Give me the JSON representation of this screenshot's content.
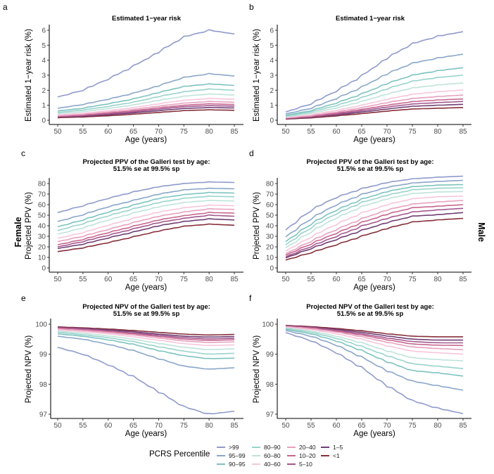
{
  "figure": {
    "row_labels": {
      "female": "Female",
      "male": "Male"
    },
    "legend": {
      "title": "PCRS Percentile",
      "entries": [
        {
          "label": ">99",
          "color": "#8f9acb"
        },
        {
          "label": "95–99",
          "color": "#8aa6c9"
        },
        {
          "label": "90–95",
          "color": "#7cc3c0"
        },
        {
          "label": "80–90",
          "color": "#99d3cc"
        },
        {
          "label": "60–80",
          "color": "#bfe3da"
        },
        {
          "label": "40–60",
          "color": "#f7c6dc"
        },
        {
          "label": "20–40",
          "color": "#e8a0bf"
        },
        {
          "label": "10–20",
          "color": "#c7668f"
        },
        {
          "label": "5–10",
          "color": "#a2578f"
        },
        {
          "label": "1–5",
          "color": "#6f3d73"
        },
        {
          "label": "<1",
          "color": "#862e3a"
        }
      ]
    }
  },
  "chart_data": [
    {
      "panel": "a",
      "type": "line",
      "title": "Estimated 1−year risk",
      "xlabel": "Age (years)",
      "ylabel": "Estimated 1−year risk (%)",
      "xlim": [
        50,
        85
      ],
      "ylim": [
        0,
        6
      ],
      "xticks": [
        "50",
        "55",
        "60",
        "65",
        "70",
        "75",
        "80",
        "85"
      ],
      "yticks": [
        "0",
        "1",
        "2",
        "3",
        "4",
        "5",
        "6"
      ],
      "x": [
        50,
        55,
        60,
        65,
        70,
        75,
        80,
        85
      ],
      "series": [
        {
          "name": ">99",
          "values": [
            1.55,
            2.0,
            2.75,
            3.6,
            4.55,
            5.55,
            6.0,
            5.75
          ]
        },
        {
          "name": "95–99",
          "values": [
            0.8,
            1.05,
            1.4,
            1.8,
            2.3,
            2.85,
            3.1,
            2.95
          ]
        },
        {
          "name": "90–95",
          "values": [
            0.62,
            0.8,
            1.1,
            1.42,
            1.85,
            2.25,
            2.42,
            2.32
          ]
        },
        {
          "name": "80–90",
          "values": [
            0.52,
            0.68,
            0.92,
            1.2,
            1.58,
            1.9,
            2.08,
            2.0
          ]
        },
        {
          "name": "60–80",
          "values": [
            0.44,
            0.57,
            0.78,
            1.02,
            1.33,
            1.6,
            1.75,
            1.68
          ]
        },
        {
          "name": "40–60",
          "values": [
            0.36,
            0.46,
            0.64,
            0.84,
            1.1,
            1.33,
            1.45,
            1.4
          ]
        },
        {
          "name": "20–40",
          "values": [
            0.31,
            0.4,
            0.55,
            0.72,
            0.94,
            1.14,
            1.25,
            1.2
          ]
        },
        {
          "name": "10–20",
          "values": [
            0.27,
            0.35,
            0.48,
            0.63,
            0.83,
            1.0,
            1.1,
            1.05
          ]
        },
        {
          "name": "5–10",
          "values": [
            0.24,
            0.31,
            0.43,
            0.56,
            0.74,
            0.9,
            0.98,
            0.94
          ]
        },
        {
          "name": "1–5",
          "values": [
            0.21,
            0.27,
            0.37,
            0.49,
            0.64,
            0.78,
            0.85,
            0.82
          ]
        },
        {
          "name": "<1",
          "values": [
            0.17,
            0.22,
            0.3,
            0.4,
            0.52,
            0.64,
            0.7,
            0.66
          ]
        }
      ]
    },
    {
      "panel": "b",
      "type": "line",
      "title": "Estimated 1−year risk",
      "xlabel": "Age (years)",
      "ylabel": "Estimated 1−year risk (%)",
      "xlim": [
        50,
        85
      ],
      "ylim": [
        0,
        6
      ],
      "xticks": [
        "50",
        "55",
        "60",
        "65",
        "70",
        "75",
        "80",
        "85"
      ],
      "yticks": [
        "0",
        "1",
        "2",
        "3",
        "4",
        "5",
        "6"
      ],
      "x": [
        50,
        55,
        60,
        65,
        70,
        75,
        80,
        85
      ],
      "series": [
        {
          "name": ">99",
          "values": [
            0.55,
            1.1,
            1.95,
            2.95,
            4.15,
            5.1,
            5.6,
            5.9
          ]
        },
        {
          "name": "95–99",
          "values": [
            0.42,
            0.8,
            1.45,
            2.2,
            3.1,
            3.8,
            4.15,
            4.4
          ]
        },
        {
          "name": "90–95",
          "values": [
            0.33,
            0.64,
            1.15,
            1.75,
            2.45,
            3.0,
            3.3,
            3.5
          ]
        },
        {
          "name": "80–90",
          "values": [
            0.28,
            0.55,
            0.98,
            1.5,
            2.1,
            2.6,
            2.85,
            3.0
          ]
        },
        {
          "name": "60–80",
          "values": [
            0.24,
            0.46,
            0.82,
            1.25,
            1.75,
            2.15,
            2.35,
            2.48
          ]
        },
        {
          "name": "40–60",
          "values": [
            0.19,
            0.37,
            0.66,
            1.0,
            1.4,
            1.73,
            1.9,
            2.02
          ]
        },
        {
          "name": "20–40",
          "values": [
            0.16,
            0.31,
            0.55,
            0.84,
            1.18,
            1.45,
            1.58,
            1.68
          ]
        },
        {
          "name": "10–20",
          "values": [
            0.14,
            0.27,
            0.47,
            0.72,
            1.0,
            1.24,
            1.35,
            1.42
          ]
        },
        {
          "name": "5–10",
          "values": [
            0.12,
            0.23,
            0.41,
            0.63,
            0.88,
            1.08,
            1.18,
            1.25
          ]
        },
        {
          "name": "1–5",
          "values": [
            0.1,
            0.2,
            0.36,
            0.54,
            0.75,
            0.93,
            1.0,
            1.06
          ]
        },
        {
          "name": "<1",
          "values": [
            0.08,
            0.16,
            0.29,
            0.44,
            0.61,
            0.75,
            0.8,
            0.85
          ]
        }
      ]
    },
    {
      "panel": "c",
      "type": "line",
      "title": "Projected PPV of the Galleri test by age:\n51.5% se at 99.5% sp",
      "xlabel": "Age (years)",
      "ylabel": "Projected PPV (%)",
      "xlim": [
        50,
        85
      ],
      "ylim": [
        0,
        80
      ],
      "xticks": [
        "50",
        "55",
        "60",
        "65",
        "70",
        "75",
        "80",
        "85"
      ],
      "yticks": [
        "0",
        "10",
        "20",
        "30",
        "40",
        "50",
        "60",
        "70",
        "80"
      ],
      "x": [
        50,
        55,
        60,
        65,
        70,
        75,
        80,
        85
      ],
      "series": [
        {
          "name": ">99",
          "values": [
            52.5,
            59,
            66,
            72,
            77,
            80,
            81.5,
            81
          ]
        },
        {
          "name": "95–99",
          "values": [
            44,
            50.5,
            58,
            64,
            70,
            74,
            75.5,
            75
          ]
        },
        {
          "name": "90–95",
          "values": [
            39,
            45.5,
            53,
            59.5,
            66,
            69.5,
            71.5,
            71
          ]
        },
        {
          "name": "80–90",
          "values": [
            35.5,
            42,
            49.5,
            56,
            62,
            66,
            68,
            67.5
          ]
        },
        {
          "name": "60–80",
          "values": [
            32,
            38,
            45.5,
            52,
            58,
            62,
            64,
            63.5
          ]
        },
        {
          "name": "40–60",
          "values": [
            28,
            33.5,
            40.5,
            47,
            53,
            57,
            59.5,
            59
          ]
        },
        {
          "name": "20–40",
          "values": [
            25,
            30,
            36.5,
            43,
            49,
            53,
            56,
            55.5
          ]
        },
        {
          "name": "10–20",
          "values": [
            22,
            27,
            33.5,
            39.5,
            45.5,
            49.5,
            52.5,
            52
          ]
        },
        {
          "name": "5–10",
          "values": [
            20,
            25,
            31,
            37,
            43,
            47,
            50,
            49
          ]
        },
        {
          "name": "1–5",
          "values": [
            18.5,
            22.5,
            28.5,
            34,
            40,
            44,
            46.5,
            45.5
          ]
        },
        {
          "name": "<1",
          "values": [
            15.5,
            19,
            24,
            29.5,
            35,
            39.5,
            41.5,
            40.5
          ]
        }
      ]
    },
    {
      "panel": "d",
      "type": "line",
      "title": "Projected PPV of the Galleri test by age:\n51.5% se at 99.5% sp",
      "xlabel": "Age (years)",
      "ylabel": "Projected PPV (%)",
      "xlim": [
        50,
        85
      ],
      "ylim": [
        0,
        80
      ],
      "xticks": [
        "50",
        "55",
        "60",
        "65",
        "70",
        "75",
        "80",
        "85"
      ],
      "yticks": [
        "0",
        "10",
        "20",
        "30",
        "40",
        "50",
        "60",
        "70",
        "80"
      ],
      "x": [
        50,
        55,
        60,
        65,
        70,
        75,
        80,
        85
      ],
      "series": [
        {
          "name": ">99",
          "values": [
            36,
            55,
            67,
            75,
            81,
            84.5,
            86,
            87
          ]
        },
        {
          "name": "95–99",
          "values": [
            29.5,
            47,
            60,
            69.5,
            76.5,
            80.5,
            82,
            83
          ]
        },
        {
          "name": "90–95",
          "values": [
            25,
            42,
            55,
            65,
            72.5,
            77,
            78.5,
            79
          ]
        },
        {
          "name": "80–90",
          "values": [
            22,
            38.5,
            51.5,
            62,
            69,
            74,
            75.5,
            76
          ]
        },
        {
          "name": "60–80",
          "values": [
            19,
            34.5,
            47.5,
            58,
            65.5,
            70.5,
            72,
            72.5
          ]
        },
        {
          "name": "40–60",
          "values": [
            16,
            29.5,
            41.5,
            52,
            60,
            65.5,
            67.5,
            68
          ]
        },
        {
          "name": "20–40",
          "values": [
            13.5,
            25.5,
            36.5,
            46.5,
            55,
            60.5,
            62.5,
            64
          ]
        },
        {
          "name": "10–20",
          "values": [
            12,
            23,
            33,
            43,
            51,
            57,
            58.5,
            60
          ]
        },
        {
          "name": "5–10",
          "values": [
            10.5,
            20.5,
            30,
            39.5,
            47,
            53,
            55,
            56.5
          ]
        },
        {
          "name": "1–5",
          "values": [
            9.5,
            18.5,
            27,
            35.5,
            43,
            49,
            50.5,
            52.5
          ]
        },
        {
          "name": "<1",
          "values": [
            7.5,
            14.5,
            22,
            30,
            37.5,
            43.5,
            45.5,
            47
          ]
        }
      ]
    },
    {
      "panel": "e",
      "type": "line",
      "title": "Projected NPV of the Galleri test by age:\n51.5% se at 99.5% sp",
      "xlabel": "Age (years)",
      "ylabel": "Projected NPV (%)",
      "xlim": [
        50,
        85
      ],
      "ylim": [
        97,
        100
      ],
      "xticks": [
        "50",
        "55",
        "60",
        "65",
        "70",
        "75",
        "80",
        "85"
      ],
      "yticks": [
        "97",
        "98",
        "99",
        "100"
      ],
      "x": [
        50,
        55,
        60,
        65,
        70,
        75,
        80,
        85
      ],
      "series": [
        {
          "name": ">99",
          "values": [
            99.23,
            99.0,
            98.65,
            98.25,
            97.75,
            97.25,
            97.0,
            97.1
          ]
        },
        {
          "name": "95–99",
          "values": [
            99.6,
            99.5,
            99.33,
            99.12,
            98.85,
            98.6,
            98.5,
            98.55
          ]
        },
        {
          "name": "90–95",
          "values": [
            99.68,
            99.6,
            99.48,
            99.33,
            99.12,
            98.95,
            98.85,
            98.87
          ]
        },
        {
          "name": "80–90",
          "values": [
            99.73,
            99.65,
            99.55,
            99.42,
            99.25,
            99.1,
            99.0,
            99.03
          ]
        },
        {
          "name": "60–80",
          "values": [
            99.77,
            99.7,
            99.61,
            99.5,
            99.36,
            99.23,
            99.15,
            99.18
          ]
        },
        {
          "name": "40–60",
          "values": [
            99.81,
            99.75,
            99.68,
            99.58,
            99.47,
            99.35,
            99.29,
            99.31
          ]
        },
        {
          "name": "20–40",
          "values": [
            99.84,
            99.79,
            99.72,
            99.64,
            99.54,
            99.44,
            99.39,
            99.41
          ]
        },
        {
          "name": "10–20",
          "values": [
            99.86,
            99.82,
            99.76,
            99.68,
            99.59,
            99.5,
            99.46,
            99.48
          ]
        },
        {
          "name": "5–10",
          "values": [
            99.88,
            99.84,
            99.78,
            99.71,
            99.63,
            99.55,
            99.51,
            99.53
          ]
        },
        {
          "name": "1–5",
          "values": [
            99.89,
            99.86,
            99.81,
            99.75,
            99.67,
            99.6,
            99.57,
            99.59
          ]
        },
        {
          "name": "<1",
          "values": [
            99.91,
            99.88,
            99.84,
            99.79,
            99.73,
            99.67,
            99.64,
            99.66
          ]
        }
      ]
    },
    {
      "panel": "f",
      "type": "line",
      "title": "Projected NPV of the Galleri test by age:\n51.5% se at 99.5% sp",
      "xlabel": "Age (years)",
      "ylabel": "Projected NPV (%)",
      "xlim": [
        50,
        85
      ],
      "ylim": [
        97,
        100
      ],
      "xticks": [
        "50",
        "55",
        "60",
        "65",
        "70",
        "75",
        "80",
        "85"
      ],
      "yticks": [
        "97",
        "98",
        "99",
        "100"
      ],
      "x": [
        50,
        55,
        60,
        65,
        70,
        75,
        80,
        85
      ],
      "series": [
        {
          "name": ">99",
          "values": [
            99.72,
            99.45,
            99.05,
            98.55,
            97.95,
            97.45,
            97.2,
            97.02
          ]
        },
        {
          "name": "95–99",
          "values": [
            99.79,
            99.6,
            99.3,
            98.9,
            98.45,
            98.1,
            97.95,
            97.8
          ]
        },
        {
          "name": "90–95",
          "values": [
            99.83,
            99.68,
            99.44,
            99.12,
            98.75,
            98.45,
            98.38,
            98.27
          ]
        },
        {
          "name": "80–90",
          "values": [
            99.86,
            99.73,
            99.53,
            99.26,
            98.95,
            98.68,
            98.6,
            98.52
          ]
        },
        {
          "name": "60–80",
          "values": [
            99.88,
            99.77,
            99.6,
            99.38,
            99.11,
            98.88,
            98.82,
            98.78
          ]
        },
        {
          "name": "40–60",
          "values": [
            99.9,
            99.82,
            99.68,
            99.5,
            99.28,
            99.1,
            99.05,
            99.0
          ]
        },
        {
          "name": "20–40",
          "values": [
            99.92,
            99.85,
            99.74,
            99.58,
            99.4,
            99.24,
            99.19,
            99.15
          ]
        },
        {
          "name": "10–20",
          "values": [
            99.93,
            99.87,
            99.77,
            99.64,
            99.48,
            99.34,
            99.3,
            99.29
          ]
        },
        {
          "name": "5–10",
          "values": [
            99.94,
            99.89,
            99.8,
            99.68,
            99.54,
            99.42,
            99.38,
            99.38
          ]
        },
        {
          "name": "1–5",
          "values": [
            99.95,
            99.9,
            99.83,
            99.73,
            99.61,
            99.5,
            99.47,
            99.47
          ]
        },
        {
          "name": "<1",
          "values": [
            99.96,
            99.92,
            99.86,
            99.78,
            99.68,
            99.6,
            99.58,
            99.58
          ]
        }
      ]
    }
  ]
}
